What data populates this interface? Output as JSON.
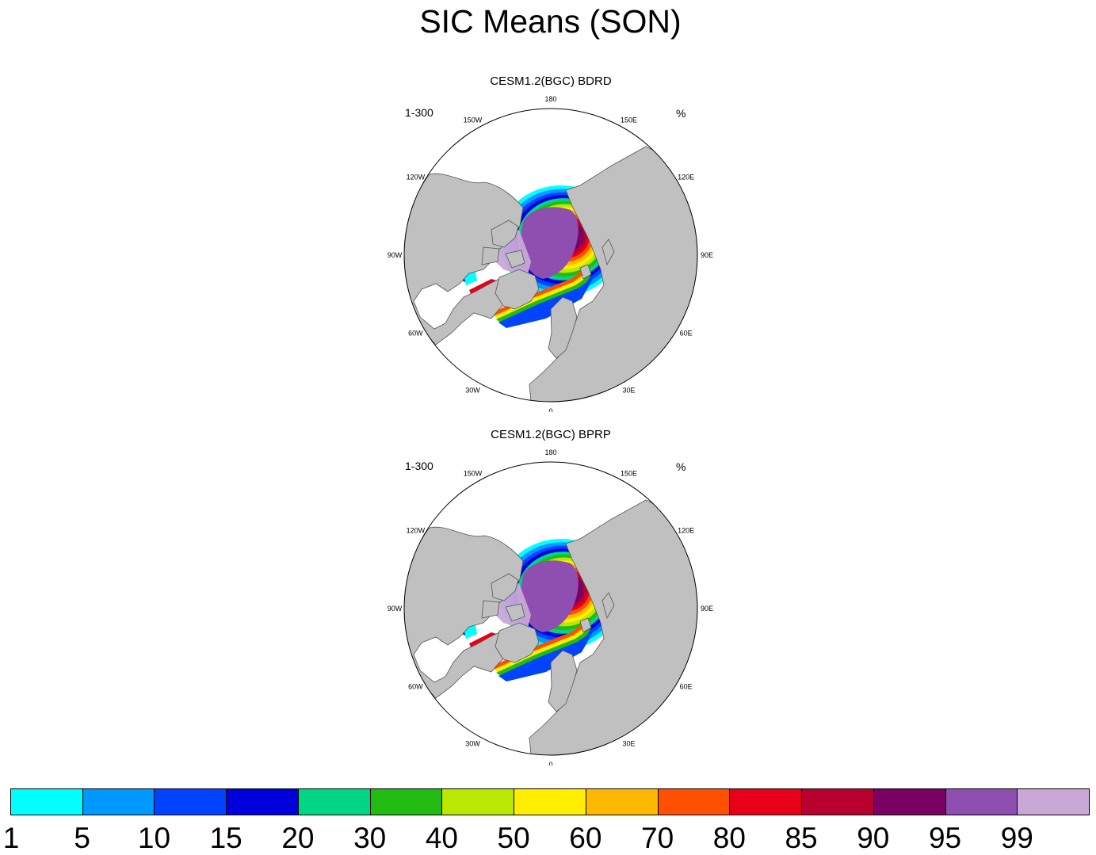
{
  "title": "SIC Means (SON)",
  "panels": [
    {
      "title": "CESM1.2(BGC) BDRD",
      "left_label": "1-300",
      "right_label": "%"
    },
    {
      "title": "CESM1.2(BGC) BPRP",
      "left_label": "1-300",
      "right_label": "%"
    }
  ],
  "longitude_labels": [
    "180",
    "150E",
    "120E",
    "90E",
    "60E",
    "30E",
    "0",
    "30W",
    "60W",
    "90W",
    "120W",
    "150W"
  ],
  "colorbar": {
    "labels": [
      "1",
      "5",
      "10",
      "15",
      "20",
      "30",
      "40",
      "50",
      "60",
      "70",
      "80",
      "85",
      "90",
      "95",
      "99"
    ],
    "colors": [
      "#00ffff",
      "#0099ff",
      "#0044ff",
      "#0000dd",
      "#00d685",
      "#22bb11",
      "#bbe800",
      "#ffee00",
      "#ffb800",
      "#ff4f00",
      "#e8001a",
      "#b8002e",
      "#7a0063",
      "#8e4fb0",
      "#c9a8d8"
    ]
  },
  "colors": {
    "land": "#c0c0c0",
    "ocean": "#ffffff",
    "coast": "#555555"
  }
}
